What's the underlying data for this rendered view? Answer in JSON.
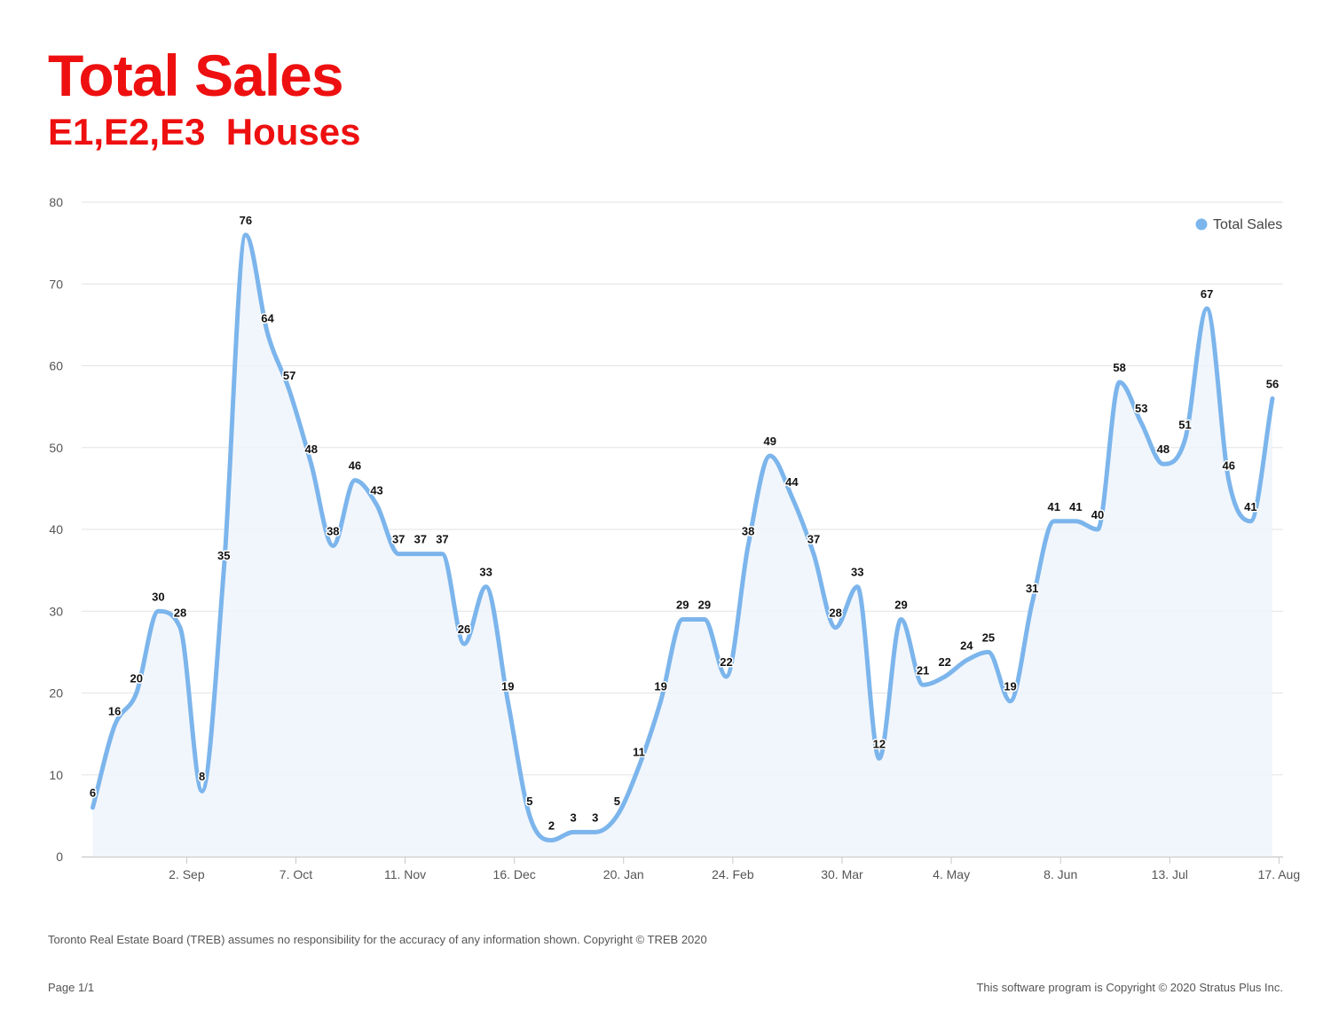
{
  "header": {
    "title": "Total Sales",
    "subtitle": "E1,E2,E3  Houses"
  },
  "chart_data": {
    "type": "area",
    "title": "Total Sales",
    "subtitle": "E1,E2,E3  Houses",
    "xlabel": "",
    "ylabel": "",
    "ylim": [
      0,
      80
    ],
    "yticks": [
      0,
      10,
      20,
      30,
      40,
      50,
      60,
      70,
      80
    ],
    "grid": true,
    "legend_position": "top-right",
    "x_tick_labels": [
      {
        "label": "2. Sep",
        "index": 4.3
      },
      {
        "label": "7. Oct",
        "index": 9.3
      },
      {
        "label": "11. Nov",
        "index": 14.3
      },
      {
        "label": "16. Dec",
        "index": 19.3
      },
      {
        "label": "20. Jan",
        "index": 24.3
      },
      {
        "label": "24. Feb",
        "index": 29.3
      },
      {
        "label": "30. Mar",
        "index": 34.3
      },
      {
        "label": "4. May",
        "index": 39.3
      },
      {
        "label": "8. Jun",
        "index": 44.3
      },
      {
        "label": "13. Jul",
        "index": 49.3
      },
      {
        "label": "17. Aug",
        "index": 54.3
      }
    ],
    "series": [
      {
        "name": "Total Sales",
        "color": "#7cb5ec",
        "values": [
          6,
          16,
          20,
          30,
          28,
          8,
          35,
          76,
          64,
          57,
          48,
          38,
          46,
          43,
          37,
          37,
          37,
          26,
          33,
          19,
          5,
          2,
          3,
          3,
          5,
          11,
          19,
          29,
          29,
          22,
          38,
          49,
          44,
          37,
          28,
          33,
          12,
          29,
          21,
          22,
          24,
          25,
          19,
          31,
          41,
          41,
          40,
          58,
          53,
          48,
          51,
          67,
          46,
          41,
          56
        ]
      }
    ]
  },
  "footer": {
    "disclaimer": "Toronto Real Estate Board (TREB) assumes no responsibility for the accuracy of any information shown. Copyright © TREB 2020",
    "page": "Page 1/1",
    "software": "This software program is Copyright © 2020 Stratus Plus Inc."
  }
}
